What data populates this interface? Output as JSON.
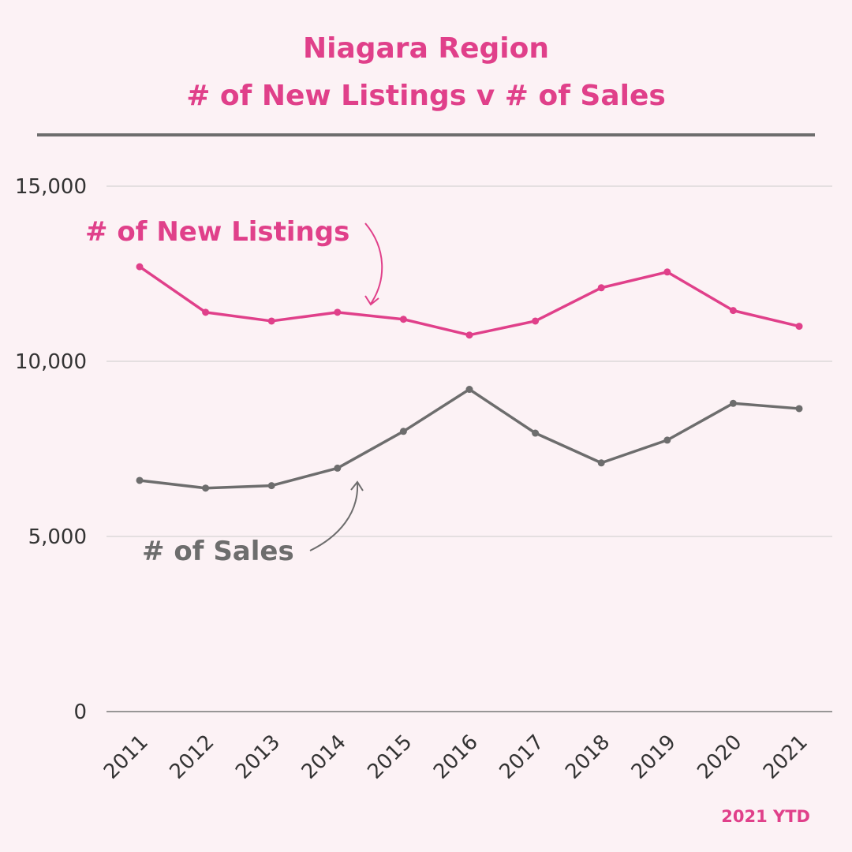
{
  "chart_data": {
    "type": "line",
    "title_line1": "Niagara Region",
    "title_line2": "# of New Listings v # of Sales",
    "x": [
      "2011",
      "2012",
      "2013",
      "2014",
      "2015",
      "2016",
      "2017",
      "2018",
      "2019",
      "2020",
      "2021"
    ],
    "y_ticks": [
      "0",
      "5,000",
      "10,000",
      "15,000"
    ],
    "ylim": [
      0,
      15000
    ],
    "grid": true,
    "series": [
      {
        "name": "# of New Listings",
        "color": "#e0408a",
        "values": [
          12700,
          11400,
          11150,
          11400,
          11200,
          10750,
          11150,
          12100,
          12550,
          11450,
          11000
        ]
      },
      {
        "name": "# of Sales",
        "color": "#6d6d6d",
        "values": [
          6600,
          6380,
          6450,
          6950,
          8000,
          9200,
          7950,
          7100,
          7750,
          8800,
          8650
        ]
      }
    ],
    "footnote": "2021 YTD"
  },
  "colors": {
    "accent": "#e0408a",
    "gray": "#6d6d6d",
    "background": "#fcf2f5",
    "grid": "#cccccc",
    "rule": "#6d6d6d"
  }
}
